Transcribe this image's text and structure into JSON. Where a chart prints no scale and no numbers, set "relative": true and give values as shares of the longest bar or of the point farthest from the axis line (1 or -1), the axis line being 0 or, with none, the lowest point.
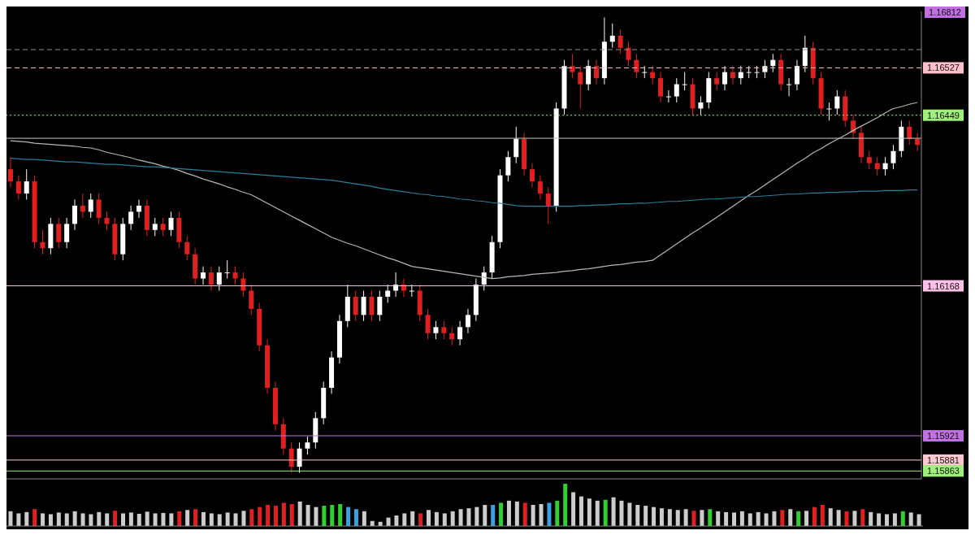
{
  "chart_data": [
    {
      "type": "candlestick",
      "tick_labels": false,
      "legend": false,
      "grid": false,
      "categories": [
        null,
        null,
        null,
        null,
        null,
        null,
        null,
        null,
        null,
        null,
        null,
        null,
        null,
        null,
        null,
        null,
        null,
        null,
        null,
        null,
        null,
        null,
        null,
        null,
        null,
        null,
        null,
        null,
        null,
        null,
        null,
        null,
        null,
        null,
        null,
        null,
        null,
        null,
        null,
        null,
        null,
        null,
        null,
        null,
        null,
        null,
        null,
        null,
        null,
        null,
        null,
        null,
        null,
        null,
        null,
        null,
        null,
        null,
        null,
        null,
        null,
        null,
        null,
        null,
        null,
        null,
        null,
        null,
        null,
        null,
        null,
        null,
        null,
        null,
        null,
        null,
        null,
        null,
        null,
        null,
        null,
        null,
        null,
        null,
        null,
        null,
        null,
        null,
        null,
        null,
        null,
        null,
        null,
        null,
        null,
        null,
        null,
        null,
        null,
        null,
        null,
        null,
        null,
        null,
        null,
        null,
        null,
        null,
        null,
        null,
        null,
        null,
        null,
        null
      ],
      "ohlc": [
        [
          1.1636,
          1.1638,
          1.1633,
          1.1634
        ],
        [
          1.1634,
          1.1635,
          1.1631,
          1.1632
        ],
        [
          1.1632,
          1.1636,
          1.1631,
          1.1634
        ],
        [
          1.1634,
          1.1635,
          1.1623,
          1.1624
        ],
        [
          1.1624,
          1.1626,
          1.1622,
          1.1623
        ],
        [
          1.1623,
          1.1628,
          1.1622,
          1.1627
        ],
        [
          1.1627,
          1.1628,
          1.1623,
          1.1624
        ],
        [
          1.1624,
          1.1628,
          1.1623,
          1.1627
        ],
        [
          1.1627,
          1.1631,
          1.1626,
          1.163
        ],
        [
          1.163,
          1.1632,
          1.1628,
          1.1629
        ],
        [
          1.1629,
          1.1632,
          1.1628,
          1.1631
        ],
        [
          1.1631,
          1.1632,
          1.1627,
          1.1628
        ],
        [
          1.1628,
          1.1629,
          1.1626,
          1.1627
        ],
        [
          1.1627,
          1.1628,
          1.1621,
          1.1622
        ],
        [
          1.1622,
          1.1628,
          1.1621,
          1.1627
        ],
        [
          1.1627,
          1.163,
          1.1626,
          1.1629
        ],
        [
          1.1629,
          1.1631,
          1.1628,
          1.163
        ],
        [
          1.163,
          1.1631,
          1.1625,
          1.1626
        ],
        [
          1.1626,
          1.1628,
          1.1625,
          1.1627
        ],
        [
          1.1627,
          1.1628,
          1.1625,
          1.1626
        ],
        [
          1.1626,
          1.1629,
          1.1625,
          1.1628
        ],
        [
          1.1628,
          1.1629,
          1.1623,
          1.1624
        ],
        [
          1.1624,
          1.1625,
          1.1621,
          1.1622
        ],
        [
          1.1622,
          1.1623,
          1.1617,
          1.1618
        ],
        [
          1.1618,
          1.162,
          1.1617,
          1.1619
        ],
        [
          1.1619,
          1.162,
          1.1616,
          1.1617
        ],
        [
          1.1617,
          1.162,
          1.1616,
          1.1619
        ],
        [
          1.1619,
          1.1621,
          1.1618,
          1.1619
        ],
        [
          1.1619,
          1.162,
          1.1617,
          1.1618
        ],
        [
          1.1618,
          1.1619,
          1.1615,
          1.1616
        ],
        [
          1.1616,
          1.1617,
          1.1612,
          1.1613
        ],
        [
          1.1613,
          1.1614,
          1.1606,
          1.1607
        ],
        [
          1.1607,
          1.1608,
          1.1599,
          1.16
        ],
        [
          1.16,
          1.1601,
          1.1593,
          1.1594
        ],
        [
          1.1594,
          1.1595,
          1.1589,
          1.159
        ],
        [
          1.159,
          1.1591,
          1.1586,
          1.1587
        ],
        [
          1.1587,
          1.1591,
          1.1586,
          1.159
        ],
        [
          1.159,
          1.1592,
          1.1589,
          1.1591
        ],
        [
          1.1591,
          1.1596,
          1.159,
          1.1595
        ],
        [
          1.1595,
          1.1601,
          1.1594,
          1.16
        ],
        [
          1.16,
          1.1606,
          1.1599,
          1.1605
        ],
        [
          1.1605,
          1.1612,
          1.1604,
          1.1611
        ],
        [
          1.1611,
          1.1617,
          1.161,
          1.1615
        ],
        [
          1.1615,
          1.1616,
          1.1611,
          1.1612
        ],
        [
          1.1612,
          1.1616,
          1.1611,
          1.1615
        ],
        [
          1.1615,
          1.1616,
          1.1611,
          1.1612
        ],
        [
          1.1612,
          1.1616,
          1.1611,
          1.1615
        ],
        [
          1.1615,
          1.1617,
          1.1614,
          1.1616
        ],
        [
          1.1616,
          1.1619,
          1.1615,
          1.1617
        ],
        [
          1.1617,
          1.1618,
          1.1615,
          1.1616
        ],
        [
          1.1616,
          1.1617,
          1.1615,
          1.1616
        ],
        [
          1.1616,
          1.1617,
          1.1611,
          1.1612
        ],
        [
          1.1612,
          1.1613,
          1.1608,
          1.1609
        ],
        [
          1.1609,
          1.1611,
          1.1608,
          1.161
        ],
        [
          1.161,
          1.1611,
          1.1608,
          1.1609
        ],
        [
          1.1609,
          1.161,
          1.1607,
          1.1608
        ],
        [
          1.1608,
          1.1611,
          1.1607,
          1.161
        ],
        [
          1.161,
          1.1613,
          1.1609,
          1.1612
        ],
        [
          1.1612,
          1.1618,
          1.1611,
          1.1617
        ],
        [
          1.1617,
          1.162,
          1.1616,
          1.1619
        ],
        [
          1.1619,
          1.1625,
          1.1618,
          1.1624
        ],
        [
          1.1624,
          1.1636,
          1.1623,
          1.1635
        ],
        [
          1.1635,
          1.1639,
          1.1634,
          1.1638
        ],
        [
          1.1638,
          1.1643,
          1.1637,
          1.1641
        ],
        [
          1.1641,
          1.1642,
          1.1635,
          1.1636
        ],
        [
          1.1636,
          1.1637,
          1.1633,
          1.1634
        ],
        [
          1.1634,
          1.1635,
          1.1631,
          1.1632
        ],
        [
          1.1632,
          1.1633,
          1.1627,
          1.163
        ],
        [
          1.163,
          1.1647,
          1.1629,
          1.1646
        ],
        [
          1.1646,
          1.1654,
          1.1645,
          1.1653
        ],
        [
          1.1653,
          1.1655,
          1.1651,
          1.1652
        ],
        [
          1.1652,
          1.1653,
          1.1646,
          1.165
        ],
        [
          1.165,
          1.1654,
          1.1649,
          1.1653
        ],
        [
          1.1653,
          1.1654,
          1.165,
          1.1651
        ],
        [
          1.1651,
          1.1661,
          1.165,
          1.1657
        ],
        [
          1.1657,
          1.166,
          1.1656,
          1.1658
        ],
        [
          1.1658,
          1.1659,
          1.1655,
          1.1656
        ],
        [
          1.1656,
          1.1657,
          1.1653,
          1.1654
        ],
        [
          1.1654,
          1.1655,
          1.1651,
          1.1652
        ],
        [
          1.1652,
          1.1653,
          1.1651,
          1.1652
        ],
        [
          1.1652,
          1.1653,
          1.165,
          1.1651
        ],
        [
          1.1651,
          1.1652,
          1.1647,
          1.1648
        ],
        [
          1.1648,
          1.1649,
          1.1647,
          1.1648
        ],
        [
          1.1648,
          1.1651,
          1.1647,
          1.165
        ],
        [
          1.165,
          1.1652,
          1.1649,
          1.165
        ],
        [
          1.165,
          1.1651,
          1.1645,
          1.1646
        ],
        [
          1.1646,
          1.1648,
          1.1645,
          1.1647
        ],
        [
          1.1647,
          1.1652,
          1.1646,
          1.1651
        ],
        [
          1.1651,
          1.1652,
          1.1649,
          1.165
        ],
        [
          1.165,
          1.1653,
          1.1649,
          1.1652
        ],
        [
          1.1652,
          1.1653,
          1.165,
          1.1651
        ],
        [
          1.1651,
          1.1653,
          1.165,
          1.1652
        ],
        [
          1.1652,
          1.1653,
          1.1651,
          1.1652
        ],
        [
          1.1652,
          1.1653,
          1.1651,
          1.1652
        ],
        [
          1.1652,
          1.1654,
          1.1651,
          1.1653
        ],
        [
          1.1653,
          1.1655,
          1.1652,
          1.1654
        ],
        [
          1.1654,
          1.1655,
          1.1649,
          1.165
        ],
        [
          1.165,
          1.1651,
          1.1648,
          1.165
        ],
        [
          1.165,
          1.1654,
          1.1649,
          1.1653
        ],
        [
          1.1653,
          1.1658,
          1.1652,
          1.1656
        ],
        [
          1.1656,
          1.1657,
          1.165,
          1.1651
        ],
        [
          1.1651,
          1.1652,
          1.1645,
          1.1646
        ],
        [
          1.1646,
          1.1647,
          1.1644,
          1.1646
        ],
        [
          1.1646,
          1.1649,
          1.1645,
          1.1648
        ],
        [
          1.1648,
          1.1649,
          1.1643,
          1.1644
        ],
        [
          1.1644,
          1.1645,
          1.1641,
          1.1642
        ],
        [
          1.1642,
          1.1643,
          1.1637,
          1.1638
        ],
        [
          1.1638,
          1.1639,
          1.1636,
          1.1637
        ],
        [
          1.1637,
          1.1638,
          1.1635,
          1.1636
        ],
        [
          1.1636,
          1.1638,
          1.1635,
          1.1637
        ],
        [
          1.1637,
          1.164,
          1.1636,
          1.1639
        ],
        [
          1.1639,
          1.1644,
          1.1638,
          1.1643
        ],
        [
          1.1643,
          1.1644,
          1.164,
          1.1641
        ],
        [
          1.1641,
          1.1642,
          1.1639,
          1.164
        ]
      ],
      "colors": [
        "#e02020",
        "#e02020",
        "#ffffff",
        "#e02020",
        "#e02020",
        "#ffffff",
        "#e02020",
        "#ffffff",
        "#ffffff",
        "#e02020",
        "#ffffff",
        "#e02020",
        "#e02020",
        "#e02020",
        "#ffffff",
        "#ffffff",
        "#ffffff",
        "#e02020",
        "#ffffff",
        "#e02020",
        "#ffffff",
        "#e02020",
        "#e02020",
        "#e02020",
        "#ffffff",
        "#e02020",
        "#ffffff",
        "#ffffff",
        "#e02020",
        "#e02020",
        "#e02020",
        "#e02020",
        "#e02020",
        "#e02020",
        "#e02020",
        "#e02020",
        "#ffffff",
        "#ffffff",
        "#ffffff",
        "#ffffff",
        "#ffffff",
        "#ffffff",
        "#ffffff",
        "#e02020",
        "#ffffff",
        "#e02020",
        "#ffffff",
        "#ffffff",
        "#ffffff",
        "#e02020",
        "#ffffff",
        "#e02020",
        "#e02020",
        "#ffffff",
        "#e02020",
        "#e02020",
        "#ffffff",
        "#ffffff",
        "#ffffff",
        "#ffffff",
        "#ffffff",
        "#ffffff",
        "#ffffff",
        "#ffffff",
        "#e02020",
        "#e02020",
        "#e02020",
        "#e02020",
        "#ffffff",
        "#ffffff",
        "#e02020",
        "#e02020",
        "#ffffff",
        "#e02020",
        "#ffffff",
        "#ffffff",
        "#e02020",
        "#e02020",
        "#e02020",
        "#ffffff",
        "#e02020",
        "#e02020",
        "#ffffff",
        "#ffffff",
        "#ffffff",
        "#e02020",
        "#ffffff",
        "#ffffff",
        "#e02020",
        "#ffffff",
        "#e02020",
        "#ffffff",
        "#ffffff",
        "#ffffff",
        "#ffffff",
        "#ffffff",
        "#e02020",
        "#ffffff",
        "#ffffff",
        "#ffffff",
        "#e02020",
        "#e02020",
        "#ffffff",
        "#ffffff",
        "#e02020",
        "#e02020",
        "#e02020",
        "#e02020",
        "#e02020",
        "#ffffff",
        "#ffffff",
        "#ffffff",
        "#e02020",
        "#e02020"
      ],
      "series": [
        {
          "type": "line",
          "color": "#b8b8b0",
          "values": [
            1.16407,
            1.16406,
            1.16405,
            1.16403,
            1.16402,
            1.16401,
            1.164,
            1.16399,
            1.16398,
            1.16396,
            1.16395,
            1.16392,
            1.16388,
            1.16385,
            1.16382,
            1.16379,
            1.16375,
            1.16372,
            1.16369,
            1.16365,
            1.16362,
            1.16358,
            1.16353,
            1.16349,
            1.16344,
            1.1634,
            1.16336,
            1.16331,
            1.16327,
            1.16322,
            1.16318,
            1.16311,
            1.16304,
            1.16297,
            1.1629,
            1.16283,
            1.16276,
            1.16269,
            1.16262,
            1.16255,
            1.16248,
            1.16243,
            1.16238,
            1.16234,
            1.16229,
            1.16224,
            1.16219,
            1.16214,
            1.1621,
            1.16205,
            1.162,
            1.16198,
            1.16196,
            1.16194,
            1.16192,
            1.1619,
            1.16188,
            1.16186,
            1.16184,
            1.16182,
            1.1618,
            1.16181,
            1.16183,
            1.16184,
            1.16185,
            1.16187,
            1.16188,
            1.16189,
            1.1619,
            1.16192,
            1.16193,
            1.16195,
            1.16196,
            1.16198,
            1.162,
            1.16202,
            1.16203,
            1.16205,
            1.16207,
            1.16208,
            1.1621,
            1.16219,
            1.16228,
            1.16237,
            1.16246,
            1.16255,
            1.16263,
            1.16272,
            1.16281,
            1.1629,
            1.16299,
            1.16308,
            1.16317,
            1.16325,
            1.16334,
            1.16343,
            1.16352,
            1.16361,
            1.1637,
            1.16378,
            1.16387,
            1.16394,
            1.16402,
            1.16409,
            1.16416,
            1.16424,
            1.16431,
            1.16438,
            1.16445,
            1.16453,
            1.1646,
            1.16463,
            1.16467,
            1.1647
          ]
        },
        {
          "type": "line",
          "color": "#2a7f9a",
          "values": [
            1.16378,
            1.16377,
            1.16376,
            1.16376,
            1.16375,
            1.16374,
            1.16373,
            1.16372,
            1.16372,
            1.16371,
            1.1637,
            1.16369,
            1.16368,
            1.16368,
            1.16367,
            1.16366,
            1.16365,
            1.16364,
            1.16364,
            1.16363,
            1.16362,
            1.16361,
            1.1636,
            1.16359,
            1.16358,
            1.16357,
            1.16356,
            1.16355,
            1.16354,
            1.16353,
            1.16352,
            1.16351,
            1.1635,
            1.16349,
            1.16348,
            1.16347,
            1.16346,
            1.16345,
            1.16344,
            1.16343,
            1.16342,
            1.1634,
            1.16338,
            1.16336,
            1.16334,
            1.16332,
            1.16329,
            1.16327,
            1.16325,
            1.16323,
            1.16321,
            1.16319,
            1.16318,
            1.16316,
            1.16315,
            1.16313,
            1.16311,
            1.1631,
            1.16308,
            1.16307,
            1.16305,
            1.16304,
            1.16302,
            1.163,
            1.16299,
            1.16299,
            1.16299,
            1.16299,
            1.16299,
            1.16299,
            1.16299,
            1.163,
            1.163,
            1.16301,
            1.16301,
            1.16302,
            1.16303,
            1.16303,
            1.16304,
            1.16304,
            1.16305,
            1.16306,
            1.16307,
            1.16307,
            1.16308,
            1.16309,
            1.1631,
            1.16311,
            1.16311,
            1.16312,
            1.16313,
            1.16314,
            1.16315,
            1.16315,
            1.16316,
            1.16317,
            1.16318,
            1.16319,
            1.16319,
            1.1632,
            1.16321,
            1.16321,
            1.16322,
            1.16322,
            1.16323,
            1.16323,
            1.16324,
            1.16324,
            1.16324,
            1.16325,
            1.16325,
            1.16325,
            1.16326,
            1.16326
          ]
        }
      ],
      "ylim": [
        1.1585,
        1.1662
      ],
      "ref_lines": [
        {
          "axis": "y",
          "value": 1.16557,
          "color": "#909090",
          "line_style": "dashed"
        },
        {
          "axis": "y",
          "value": 1.16527,
          "label": "1.16527",
          "color": "#ffc0cc",
          "line_style": "dashed"
        },
        {
          "axis": "y",
          "value": 1.16449,
          "label": "1.16449",
          "color": "#9ef07a",
          "line_style": "dotted"
        },
        {
          "axis": "y",
          "value": 1.16411,
          "color": "#c8c8c8",
          "line_style": "solid"
        },
        {
          "axis": "y",
          "value": 1.16168,
          "label": "1.16168",
          "color": "#ffc0e8",
          "line_style": "solid"
        },
        {
          "axis": "y",
          "value": 1.15921,
          "label": "1.15921",
          "color": "#c070e0",
          "line_style": "solid"
        },
        {
          "axis": "y",
          "value": 1.15881,
          "label": "1.15881",
          "color": "#ffc8d0",
          "line_style": "solid"
        },
        {
          "axis": "y",
          "value": 1.15863,
          "label": "1.15863",
          "color": "#9ef07a",
          "line_style": "solid"
        }
      ],
      "annotations": [
        "1.16812"
      ]
    },
    {
      "type": "bar",
      "relative": true,
      "tick_labels": false,
      "legend": false,
      "grid": false,
      "categories": [
        null,
        null,
        null,
        null,
        null,
        null,
        null,
        null,
        null,
        null,
        null,
        null,
        null,
        null,
        null,
        null,
        null,
        null,
        null,
        null,
        null,
        null,
        null,
        null,
        null,
        null,
        null,
        null,
        null,
        null,
        null,
        null,
        null,
        null,
        null,
        null,
        null,
        null,
        null,
        null,
        null,
        null,
        null,
        null,
        null,
        null,
        null,
        null,
        null,
        null,
        null,
        null,
        null,
        null,
        null,
        null,
        null,
        null,
        null,
        null,
        null,
        null,
        null,
        null,
        null,
        null,
        null,
        null,
        null,
        null,
        null,
        null,
        null,
        null,
        null,
        null,
        null,
        null,
        null,
        null,
        null,
        null,
        null,
        null,
        null,
        null,
        null,
        null,
        null,
        null,
        null,
        null,
        null,
        null,
        null,
        null,
        null,
        null,
        null,
        null,
        null,
        null,
        null,
        null,
        null,
        null,
        null,
        null,
        null,
        null,
        null,
        null,
        null,
        null
      ],
      "values": [
        0.35,
        0.3,
        0.33,
        0.4,
        0.3,
        0.28,
        0.32,
        0.3,
        0.35,
        0.3,
        0.28,
        0.33,
        0.3,
        0.36,
        0.3,
        0.32,
        0.29,
        0.34,
        0.3,
        0.31,
        0.3,
        0.35,
        0.38,
        0.4,
        0.33,
        0.3,
        0.28,
        0.32,
        0.3,
        0.36,
        0.4,
        0.45,
        0.5,
        0.48,
        0.55,
        0.52,
        0.58,
        0.5,
        0.45,
        0.48,
        0.5,
        0.52,
        0.45,
        0.4,
        0.35,
        0.12,
        0.1,
        0.2,
        0.25,
        0.3,
        0.35,
        0.3,
        0.38,
        0.33,
        0.3,
        0.35,
        0.4,
        0.42,
        0.45,
        0.5,
        0.5,
        0.55,
        0.6,
        0.58,
        0.55,
        0.5,
        0.52,
        0.55,
        0.6,
        1,
        0.8,
        0.7,
        0.65,
        0.6,
        0.62,
        0.68,
        0.6,
        0.55,
        0.5,
        0.48,
        0.45,
        0.42,
        0.4,
        0.38,
        0.4,
        0.36,
        0.38,
        0.4,
        0.35,
        0.33,
        0.32,
        0.35,
        0.3,
        0.33,
        0.3,
        0.35,
        0.38,
        0.4,
        0.35,
        0.36,
        0.45,
        0.5,
        0.42,
        0.38,
        0.35,
        0.36,
        0.4,
        0.33,
        0.3,
        0.28,
        0.3,
        0.35,
        0.32,
        0.28
      ],
      "colors": [
        "#cccccc",
        "#cccccc",
        "#cccccc",
        "#e02020",
        "#cccccc",
        "#cccccc",
        "#cccccc",
        "#cccccc",
        "#cccccc",
        "#cccccc",
        "#cccccc",
        "#cccccc",
        "#cccccc",
        "#e02020",
        "#cccccc",
        "#cccccc",
        "#cccccc",
        "#cccccc",
        "#cccccc",
        "#cccccc",
        "#cccccc",
        "#e02020",
        "#cccccc",
        "#e02020",
        "#cccccc",
        "#cccccc",
        "#cccccc",
        "#cccccc",
        "#cccccc",
        "#cccccc",
        "#e02020",
        "#e02020",
        "#e02020",
        "#e02020",
        "#e02020",
        "#e02020",
        "#cccccc",
        "#cccccc",
        "#cccccc",
        "#30d030",
        "#30d030",
        "#30d030",
        "#3aa0e0",
        "#3aa0e0",
        "#cccccc",
        "#cccccc",
        "#cccccc",
        "#cccccc",
        "#cccccc",
        "#cccccc",
        "#cccccc",
        "#e02020",
        "#cccccc",
        "#cccccc",
        "#cccccc",
        "#cccccc",
        "#cccccc",
        "#cccccc",
        "#cccccc",
        "#cccccc",
        "#3aa0e0",
        "#30d030",
        "#cccccc",
        "#cccccc",
        "#e02020",
        "#cccccc",
        "#cccccc",
        "#3aa0e0",
        "#30d030",
        "#30d030",
        "#cccccc",
        "#cccccc",
        "#cccccc",
        "#cccccc",
        "#30d030",
        "#cccccc",
        "#cccccc",
        "#cccccc",
        "#cccccc",
        "#cccccc",
        "#cccccc",
        "#cccccc",
        "#cccccc",
        "#cccccc",
        "#cccccc",
        "#e02020",
        "#cccccc",
        "#30d030",
        "#cccccc",
        "#cccccc",
        "#cccccc",
        "#cccccc",
        "#cccccc",
        "#cccccc",
        "#cccccc",
        "#cccccc",
        "#e02020",
        "#cccccc",
        "#30d030",
        "#cccccc",
        "#e02020",
        "#e02020",
        "#cccccc",
        "#cccccc",
        "#e02020",
        "#cccccc",
        "#e02020",
        "#cccccc",
        "#cccccc",
        "#cccccc",
        "#cccccc",
        "#30d030",
        "#cccccc",
        "#cccccc"
      ]
    }
  ]
}
